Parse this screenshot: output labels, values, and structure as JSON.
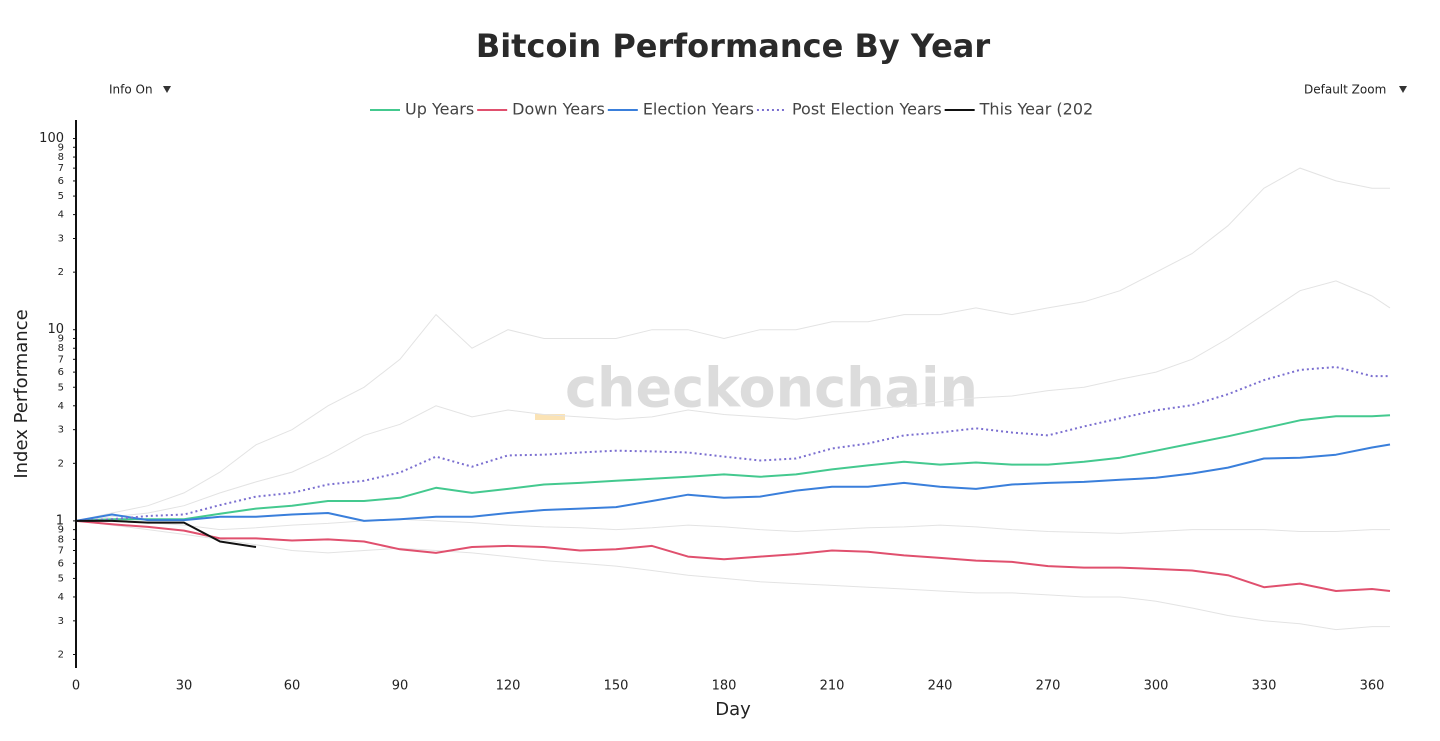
{
  "chart_data": {
    "type": "line",
    "title": "Bitcoin Performance By Year",
    "controls": [
      "Info On",
      "Default Zoom"
    ],
    "watermark": "checkonchain",
    "x_label": "Day",
    "y_label": "Index Performance",
    "log_y": true,
    "xlim": [
      0,
      370
    ],
    "ylim": [
      0.17,
      125
    ],
    "xticks": [
      0,
      30,
      60,
      90,
      120,
      150,
      180,
      210,
      240,
      270,
      300,
      330,
      360
    ],
    "yticks": [
      100,
      {
        "value": 90,
        "label": "9"
      },
      {
        "value": 80,
        "label": "8"
      },
      {
        "value": 70,
        "label": "7"
      },
      {
        "value": 60,
        "label": "6"
      },
      {
        "value": 50,
        "label": "5"
      },
      {
        "value": 40,
        "label": "4"
      },
      {
        "value": 30,
        "label": "3"
      },
      {
        "value": 20,
        "label": "2"
      },
      10,
      9,
      8,
      7,
      6,
      5,
      4,
      3,
      2,
      1,
      {
        "value": 0.9,
        "label": "9"
      },
      {
        "value": 0.8,
        "label": "8"
      },
      {
        "value": 0.7,
        "label": "7"
      },
      {
        "value": 0.6,
        "label": "6"
      },
      {
        "value": 0.5,
        "label": "5"
      },
      {
        "value": 0.4,
        "label": "4"
      },
      {
        "value": 0.3,
        "label": "3"
      },
      {
        "value": 0.2,
        "label": "2"
      }
    ],
    "x": [
      0,
      10,
      20,
      30,
      40,
      50,
      60,
      70,
      80,
      90,
      100,
      110,
      120,
      130,
      140,
      150,
      160,
      170,
      180,
      190,
      200,
      210,
      220,
      230,
      240,
      250,
      260,
      270,
      280,
      290,
      300,
      310,
      320,
      330,
      340,
      350,
      360,
      365
    ],
    "background_series": [
      {
        "color": "#e3e3e3",
        "values": [
          1,
          1.1,
          1.2,
          1.4,
          1.8,
          2.5,
          3,
          4,
          5,
          7,
          12,
          8,
          10,
          9,
          9,
          9,
          10,
          10,
          9,
          10,
          10,
          11,
          11,
          12,
          12,
          13,
          12,
          13,
          14,
          16,
          20,
          25,
          35,
          55,
          70,
          60,
          55,
          55
        ]
      },
      {
        "color": "#e3e3e3",
        "values": [
          1,
          1.05,
          1.1,
          1.2,
          1.4,
          1.6,
          1.8,
          2.2,
          2.8,
          3.2,
          4,
          3.5,
          3.8,
          3.6,
          3.5,
          3.4,
          3.5,
          3.8,
          3.6,
          3.5,
          3.4,
          3.6,
          3.8,
          4,
          4.2,
          4.4,
          4.5,
          4.8,
          5,
          5.5,
          6,
          7,
          9,
          12,
          16,
          18,
          15,
          13
        ]
      },
      {
        "color": "#e3e3e3",
        "values": [
          1,
          0.95,
          0.9,
          0.85,
          0.8,
          0.75,
          0.7,
          0.68,
          0.7,
          0.72,
          0.7,
          0.68,
          0.65,
          0.62,
          0.6,
          0.58,
          0.55,
          0.52,
          0.5,
          0.48,
          0.47,
          0.46,
          0.45,
          0.44,
          0.43,
          0.42,
          0.42,
          0.41,
          0.4,
          0.4,
          0.38,
          0.35,
          0.32,
          0.3,
          0.29,
          0.27,
          0.28,
          0.28
        ]
      },
      {
        "color": "#e3e3e3",
        "values": [
          1,
          1,
          0.98,
          0.95,
          0.9,
          0.92,
          0.95,
          0.97,
          1,
          1.02,
          1,
          0.98,
          0.95,
          0.93,
          0.92,
          0.9,
          0.92,
          0.95,
          0.93,
          0.9,
          0.88,
          0.9,
          0.92,
          0.93,
          0.95,
          0.93,
          0.9,
          0.88,
          0.87,
          0.86,
          0.88,
          0.9,
          0.9,
          0.9,
          0.88,
          0.88,
          0.9,
          0.9
        ]
      }
    ],
    "series": [
      {
        "name": "Up Years",
        "color": "#44c98f",
        "dash": "solid",
        "values": [
          1,
          1.02,
          1.02,
          1.02,
          1.09,
          1.16,
          1.2,
          1.27,
          1.27,
          1.32,
          1.49,
          1.4,
          1.47,
          1.55,
          1.58,
          1.62,
          1.66,
          1.7,
          1.75,
          1.7,
          1.75,
          1.86,
          1.95,
          2.04,
          1.97,
          2.02,
          1.97,
          1.97,
          2.04,
          2.14,
          2.33,
          2.54,
          2.77,
          3.05,
          3.36,
          3.53,
          3.53,
          3.57
        ]
      },
      {
        "name": "Down Years",
        "color": "#e0506e",
        "dash": "solid",
        "values": [
          1,
          0.96,
          0.93,
          0.89,
          0.81,
          0.81,
          0.79,
          0.8,
          0.78,
          0.71,
          0.68,
          0.73,
          0.74,
          0.73,
          0.7,
          0.71,
          0.74,
          0.65,
          0.63,
          0.65,
          0.67,
          0.7,
          0.69,
          0.66,
          0.64,
          0.62,
          0.61,
          0.58,
          0.57,
          0.57,
          0.56,
          0.55,
          0.52,
          0.45,
          0.47,
          0.43,
          0.44,
          0.43
        ]
      },
      {
        "name": "Election Years",
        "color": "#3a7fdb",
        "dash": "solid",
        "values": [
          1,
          1.08,
          1.01,
          1.01,
          1.05,
          1.05,
          1.08,
          1.1,
          1,
          1.02,
          1.05,
          1.05,
          1.1,
          1.14,
          1.16,
          1.18,
          1.27,
          1.37,
          1.32,
          1.34,
          1.44,
          1.51,
          1.51,
          1.58,
          1.51,
          1.47,
          1.55,
          1.58,
          1.6,
          1.64,
          1.68,
          1.77,
          1.9,
          2.12,
          2.14,
          2.22,
          2.42,
          2.51
        ]
      },
      {
        "name": "Post Election Years",
        "color": "#7b6fd0",
        "dash": "dot",
        "values": [
          1,
          1.02,
          1.06,
          1.08,
          1.21,
          1.34,
          1.4,
          1.55,
          1.62,
          1.79,
          2.17,
          1.92,
          2.2,
          2.22,
          2.28,
          2.33,
          2.31,
          2.28,
          2.17,
          2.07,
          2.12,
          2.39,
          2.54,
          2.8,
          2.9,
          3.05,
          2.9,
          2.8,
          3.12,
          3.44,
          3.79,
          4.03,
          4.6,
          5.45,
          6.16,
          6.38,
          5.72,
          5.72
        ]
      },
      {
        "name": "This Year (202",
        "color": "#111111",
        "dash": "solid",
        "values": [
          1,
          1,
          0.98,
          0.98,
          0.78,
          0.73,
          null,
          null,
          null,
          null,
          null,
          null,
          null,
          null,
          null,
          null,
          null,
          null,
          null,
          null,
          null,
          null,
          null,
          null,
          null,
          null,
          null,
          null,
          null,
          null,
          null,
          null,
          null,
          null,
          null,
          null,
          null,
          null
        ]
      }
    ]
  }
}
